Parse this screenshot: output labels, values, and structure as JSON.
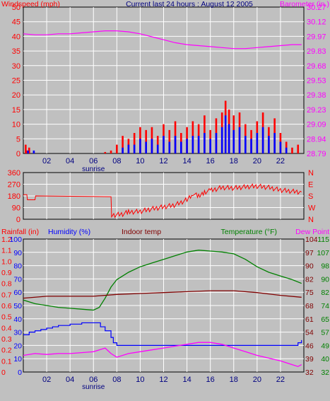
{
  "header": {
    "left_label": "Windspeed (mph)",
    "center_label": "Current last 24 hours : August 12 2005",
    "right_label": "Barometer (in.)"
  },
  "x_ticks": [
    "02",
    "04",
    "06",
    "08",
    "10",
    "12",
    "14",
    "16",
    "18",
    "20",
    "22"
  ],
  "sunrise_label": "sunrise",
  "colors": {
    "background": "#c0c0c0",
    "grid": "#ffffff",
    "red": "#ff0000",
    "blue": "#0000ff",
    "magenta": "#ff00ff",
    "green": "#008000",
    "darkred": "#800000",
    "navy": "#000080"
  },
  "chart_data": [
    {
      "type": "line",
      "panel": "wind-barometer",
      "x_range": [
        0,
        24
      ],
      "grid": true,
      "y_left": {
        "label": "Windspeed (mph)",
        "ticks": [
          "0",
          "5",
          "10",
          "15",
          "20",
          "25",
          "30",
          "35",
          "40",
          "45",
          "50"
        ],
        "ylim": [
          0,
          50
        ]
      },
      "y_right": {
        "label": "Barometer (in.)",
        "ticks": [
          "28.79",
          "28.94",
          "29.09",
          "29.23",
          "29.38",
          "29.53",
          "29.68",
          "29.83",
          "29.97",
          "30.12",
          "30.27"
        ],
        "ylim": [
          28.79,
          30.27
        ]
      },
      "series": [
        {
          "name": "Barometer (in.)",
          "color": "#ff00ff",
          "x": [
            0,
            1,
            2,
            3,
            4,
            5,
            6,
            7,
            8,
            9,
            10,
            11,
            12,
            13,
            14,
            15,
            16,
            17,
            18,
            19,
            20,
            21,
            22,
            23,
            23.8
          ],
          "y": [
            30.0,
            29.99,
            29.99,
            30.0,
            30.0,
            30.01,
            30.02,
            30.03,
            30.03,
            30.02,
            30.0,
            29.97,
            29.94,
            29.91,
            29.89,
            29.88,
            29.87,
            29.86,
            29.85,
            29.85,
            29.86,
            29.87,
            29.88,
            29.89,
            29.89
          ]
        },
        {
          "name": "Windspeed gust",
          "color": "#ff0000",
          "style": "bars",
          "x": [
            0.2,
            0.3,
            0.5,
            0.9,
            7.0,
            7.5,
            8.0,
            8.5,
            9.0,
            9.5,
            10.0,
            10.5,
            11.0,
            11.5,
            12.0,
            12.5,
            13.0,
            13.5,
            14.0,
            14.5,
            15.0,
            15.5,
            16.0,
            16.5,
            17.0,
            17.3,
            17.6,
            18.0,
            18.5,
            19.0,
            19.5,
            20.0,
            20.5,
            21.0,
            21.5,
            22.0,
            22.5,
            23.0,
            23.5
          ],
          "y": [
            3,
            1,
            2,
            0.5,
            0.5,
            1,
            3,
            6,
            5,
            7,
            9,
            8,
            9,
            6,
            10,
            8,
            11,
            7,
            9,
            11,
            10,
            13,
            8,
            12,
            14,
            18,
            15,
            13,
            14,
            10,
            8,
            11,
            14,
            9,
            12,
            7,
            4,
            2,
            3
          ]
        },
        {
          "name": "Windspeed average",
          "color": "#0000ff",
          "style": "bars",
          "x": [
            0.4,
            0.9,
            8.5,
            9.0,
            9.5,
            10.0,
            10.5,
            11.0,
            11.5,
            12.0,
            12.5,
            13.0,
            13.5,
            14.0,
            14.5,
            15.0,
            15.5,
            16.0,
            16.5,
            17.0,
            17.3,
            17.6,
            18.0,
            18.5,
            19.0,
            19.5,
            20.0,
            20.5,
            21.0,
            21.5,
            22.0,
            22.5
          ],
          "y": [
            1,
            1,
            2,
            3,
            3,
            5,
            4,
            5,
            3,
            6,
            4,
            6,
            4,
            5,
            6,
            6,
            7,
            5,
            7,
            9,
            13,
            10,
            8,
            9,
            6,
            5,
            7,
            9,
            6,
            7,
            4,
            2
          ]
        }
      ]
    },
    {
      "type": "line",
      "panel": "wind-direction",
      "x_range": [
        0,
        24
      ],
      "grid": true,
      "y_left": {
        "ticks": [
          "0",
          "90",
          "180",
          "270",
          "360"
        ],
        "ylim": [
          0,
          360
        ]
      },
      "y_right": {
        "ticks": [
          "N",
          "W",
          "S",
          "E",
          "N"
        ]
      },
      "series": [
        {
          "name": "Wind direction",
          "color": "#ff0000",
          "x": [
            0,
            0.3,
            0.35,
            1.0,
            1.05,
            7.5,
            7.55,
            8.5,
            9.0,
            10.0,
            11.0,
            12.0,
            13.0,
            14.0,
            14.5,
            15.0,
            15.5,
            16.0,
            17.0,
            18.0,
            19.0,
            20.0,
            21.0,
            22.0,
            23.0,
            23.8
          ],
          "y": [
            190,
            190,
            150,
            150,
            180,
            180,
            30,
            40,
            55,
            60,
            80,
            95,
            110,
            150,
            200,
            175,
            210,
            220,
            245,
            240,
            250,
            255,
            245,
            225,
            215,
            210
          ]
        }
      ]
    },
    {
      "type": "line",
      "panel": "temperature-humidity",
      "x_range": [
        0,
        24
      ],
      "grid": true,
      "labels": {
        "rainfall": "Rainfall (in)",
        "humidity": "Humidity (%)",
        "indoor": "Indoor temp",
        "temperature": "Temperature (°F)",
        "dewpoint": "Dew Point"
      },
      "y_left_outer": {
        "ticks": [
          "0",
          "0.1",
          "0.2",
          "0.3",
          "0.4",
          "0.5",
          "0.6",
          "0.7",
          "0.8",
          "0.9",
          "1.0",
          "1.1",
          "1.2"
        ],
        "ylim": [
          0,
          1.2
        ]
      },
      "y_left_inner": {
        "ticks": [
          "0",
          "10",
          "20",
          "30",
          "40",
          "50",
          "60",
          "70",
          "80",
          "90",
          "100"
        ],
        "ylim": [
          0,
          100
        ]
      },
      "y_right_inner": {
        "ticks": [
          "32",
          "39",
          "46",
          "54",
          "61",
          "68",
          "75",
          "82",
          "90",
          "97",
          "104"
        ],
        "ylim": [
          32,
          104
        ]
      },
      "y_right_outer": {
        "ticks": [
          "32",
          "40",
          "49",
          "57",
          "65",
          "74",
          "82",
          "90",
          "98",
          "107",
          "115"
        ],
        "ylim": [
          32,
          115
        ]
      },
      "series": [
        {
          "name": "Temperature (°F)",
          "color": "#008000",
          "axis": "°F",
          "x": [
            0,
            1,
            2,
            3,
            4,
            5,
            6,
            6.5,
            7,
            7.5,
            8,
            9,
            10,
            11,
            12,
            13,
            14,
            15,
            16,
            17,
            18,
            19,
            20,
            21,
            22,
            23,
            23.8
          ],
          "y": [
            71,
            69,
            68,
            67,
            66.5,
            66,
            65.5,
            67,
            72,
            78,
            82,
            86,
            89,
            91,
            93,
            95,
            97,
            98,
            97.5,
            97,
            96,
            93,
            89,
            86,
            84,
            82,
            80
          ]
        },
        {
          "name": "Indoor temp",
          "color": "#800000",
          "axis": "°F",
          "x": [
            0,
            2,
            4,
            6,
            8,
            10,
            12,
            14,
            16,
            18,
            20,
            22,
            23.8
          ],
          "y": [
            72,
            73,
            73,
            73,
            74,
            74.5,
            75,
            75.5,
            76,
            76,
            75,
            73.5,
            72.5
          ]
        },
        {
          "name": "Humidity (%)",
          "color": "#0000ff",
          "axis": "%",
          "x": [
            0,
            0.5,
            1.0,
            1.5,
            2.0,
            2.5,
            3.0,
            3.5,
            4.0,
            4.5,
            5.0,
            5.5,
            6.0,
            6.3,
            6.6,
            7.0,
            7.5,
            7.7,
            8.0,
            10,
            12,
            14,
            16,
            18,
            20,
            22,
            23.2,
            23.5,
            23.8
          ],
          "y": [
            28,
            30,
            31,
            32,
            33,
            34,
            35,
            35,
            36,
            36,
            37,
            37,
            37,
            37,
            34,
            31,
            26,
            22,
            20,
            20,
            20,
            20,
            20,
            20,
            20,
            20,
            20,
            22,
            24
          ]
        },
        {
          "name": "Dew Point",
          "color": "#ff00ff",
          "axis": "°F",
          "x": [
            0,
            1,
            2,
            3,
            4,
            5,
            6,
            6.5,
            7,
            7.5,
            8,
            9,
            10,
            11,
            12,
            13,
            14,
            15,
            16,
            17,
            18,
            19,
            20,
            21,
            22,
            23,
            23.5,
            23.8
          ],
          "y": [
            41,
            42,
            41.5,
            42,
            42,
            42.5,
            43,
            44,
            45,
            42,
            40,
            42,
            43,
            44,
            45,
            46,
            47,
            48,
            48,
            47,
            45,
            43,
            41,
            39.5,
            38,
            36,
            35,
            36
          ]
        }
      ]
    }
  ]
}
